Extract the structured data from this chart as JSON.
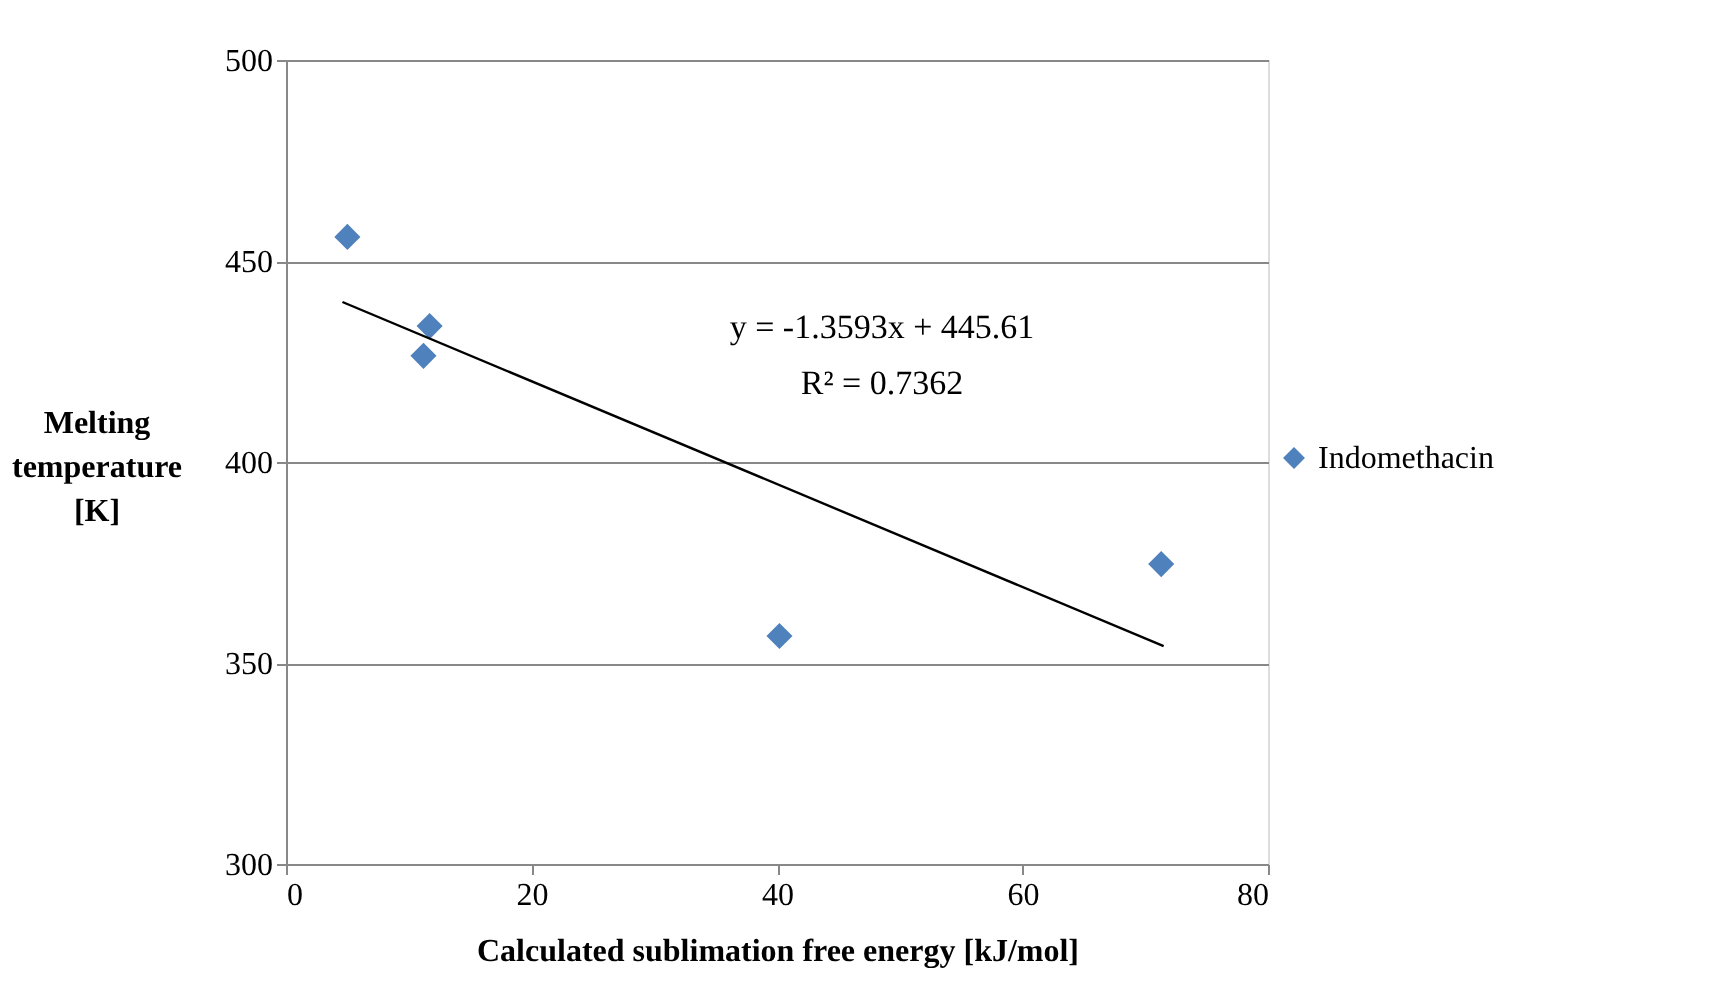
{
  "chart_data": {
    "type": "scatter",
    "xlabel": "Calculated sublimation free energy [kJ/mol]",
    "ylabel": "Melting temperature [K]",
    "xlim": [
      0,
      80
    ],
    "xticks": [
      0,
      20,
      40,
      60,
      80
    ],
    "ylim": [
      300,
      500
    ],
    "yticks": [
      300,
      350,
      400,
      450,
      500
    ],
    "grid": "y",
    "legend": "right",
    "marker": "diamond",
    "series": [
      {
        "name": "Indomethacin",
        "color": "#4f81bd",
        "x": [
          5.0,
          11.7,
          11.2,
          40.2,
          71.3
        ],
        "values": [
          456,
          433.8,
          426.4,
          356.7,
          374.6
        ]
      },
      {
        "type": "line",
        "marker": "none",
        "color": "#000000",
        "x": [
          4.6,
          71.5
        ],
        "values": [
          439.8,
          354.2
        ]
      }
    ],
    "annotations": [
      "y = -1.3593x + 445.61",
      "R² = 0.7362"
    ]
  }
}
